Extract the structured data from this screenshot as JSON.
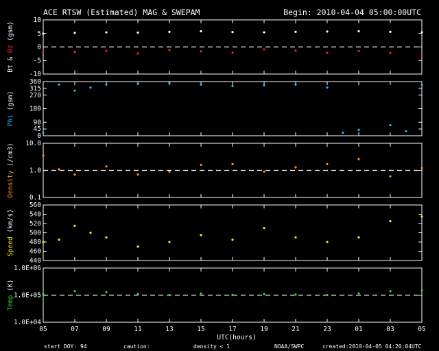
{
  "header": {
    "title": "ACE RTSW (Estimated) MAG & SWEPAM",
    "begin": "Begin: 2010-04-04 05:00:00UTC"
  },
  "footer": {
    "start_doy": "start DOY:  94",
    "caution": "caution:",
    "density_note": "density < 1",
    "agency": "NOAA/SWPC",
    "created": "created:2010-04-05 04:20:04UTC"
  },
  "colors": {
    "bt": "#ffffff",
    "bz": "#ff2020",
    "phi": "#30b8f0",
    "density": "#ff9020",
    "speed": "#f0f020",
    "temp": "#30e030",
    "density_note": "#ff9020"
  },
  "chart_data": {
    "type": "scatter",
    "x_unit": "UTC hours",
    "x_label": "UTC(hours)",
    "x_ticks": [
      "05",
      "07",
      "09",
      "11",
      "13",
      "15",
      "17",
      "19",
      "21",
      "23",
      "01",
      "03",
      "05"
    ],
    "panels": [
      {
        "key": "mag",
        "ylim": [
          -10,
          10
        ],
        "ytick_values": [
          -10,
          -5,
          0,
          5,
          10
        ],
        "ytick_labels": [
          "-10",
          "-5",
          "0",
          "5",
          "10"
        ],
        "ref_lines": [
          0
        ],
        "ylabel_parts": [
          {
            "text": "Bt",
            "color": "#ffffff"
          },
          {
            "text": " & ",
            "color": "#ffffff"
          },
          {
            "text": "Bz",
            "color": "#ff2020"
          },
          {
            "text": " (gsm)",
            "color": "#ffffff"
          }
        ],
        "series": [
          {
            "name": "Bt",
            "color": "#ffffff",
            "x": [
              0,
              2,
              4,
              6,
              8,
              10,
              12,
              14,
              16,
              18,
              20,
              22,
              24
            ],
            "y": [
              4.9,
              5.2,
              5.4,
              5.3,
              5.6,
              5.8,
              5.5,
              5.4,
              5.6,
              5.7,
              5.8,
              5.6,
              5.4
            ]
          },
          {
            "name": "Bz",
            "color": "#ff2020",
            "x": [
              0,
              2,
              4,
              6,
              8,
              10,
              12,
              14,
              16,
              18,
              20,
              22,
              24
            ],
            "y": [
              -1.5,
              -1.8,
              -1.4,
              -2.4,
              -1.2,
              -1.6,
              -2.1,
              -0.9,
              -1.4,
              -2.2,
              -1.5,
              -2.2,
              -3.3
            ]
          }
        ]
      },
      {
        "key": "phi",
        "ylim": [
          0,
          360
        ],
        "ytick_values": [
          0,
          45,
          90,
          180,
          270,
          315,
          360
        ],
        "ytick_labels": [
          "0",
          "45",
          "90",
          "180",
          "270",
          "315",
          "360"
        ],
        "ref_lines": [],
        "ylabel_parts": [
          {
            "text": "Phi",
            "color": "#30b8f0"
          },
          {
            "text": " (gsm)",
            "color": "#ffffff"
          }
        ],
        "series": [
          {
            "name": "Phi",
            "color": "#30b8f0",
            "x": [
              0,
              1,
              2,
              3,
              4,
              6,
              8,
              10,
              12,
              14,
              16,
              18,
              19,
              20,
              22,
              23,
              24
            ],
            "y": [
              20,
              340,
              300,
              320,
              340,
              345,
              350,
              340,
              330,
              335,
              340,
              320,
              20,
              40,
              70,
              30,
              340
            ]
          }
        ]
      },
      {
        "key": "density",
        "log": true,
        "ylim": [
          0.1,
          10
        ],
        "ytick_values": [
          0.1,
          1.0,
          10.0
        ],
        "ytick_labels": [
          "0.1",
          "1.0",
          "10.0"
        ],
        "ref_lines": [
          1
        ],
        "ylabel_parts": [
          {
            "text": "Density",
            "color": "#ff9020"
          },
          {
            "text": " (/cm3)",
            "color": "#ffffff"
          }
        ],
        "series": [
          {
            "name": "Density",
            "color": "#ff9020",
            "x": [
              0,
              1,
              2,
              4,
              6,
              8,
              10,
              12,
              14,
              16,
              18,
              20,
              22,
              24
            ],
            "y": [
              3.5,
              1.1,
              0.7,
              1.4,
              0.7,
              0.9,
              1.6,
              1.7,
              0.9,
              1.3,
              1.7,
              2.6,
              0.6,
              1.2
            ]
          }
        ]
      },
      {
        "key": "speed",
        "ylim": [
          440,
          560
        ],
        "ytick_values": [
          440,
          460,
          480,
          500,
          520,
          540,
          560
        ],
        "ytick_labels": [
          "440",
          "460",
          "480",
          "500",
          "520",
          "540",
          "560"
        ],
        "ref_lines": [],
        "ylabel_parts": [
          {
            "text": "Speed",
            "color": "#f0f020"
          },
          {
            "text": " (km/s)",
            "color": "#ffffff"
          }
        ],
        "series": [
          {
            "name": "Speed",
            "color": "#f0f020",
            "x": [
              0,
              1,
              2,
              3,
              4,
              6,
              8,
              10,
              12,
              14,
              16,
              18,
              20,
              22,
              24
            ],
            "y": [
              480,
              485,
              515,
              500,
              490,
              470,
              480,
              495,
              485,
              510,
              490,
              480,
              490,
              525,
              535
            ]
          }
        ]
      },
      {
        "key": "temp",
        "log": true,
        "ylim": [
          10000,
          1000000
        ],
        "ytick_values": [
          10000,
          100000,
          1000000
        ],
        "ytick_labels": [
          "1.0E+04",
          "1.0E+05",
          "1.0E+06"
        ],
        "ref_lines": [
          100000
        ],
        "ylabel_parts": [
          {
            "text": "Temp",
            "color": "#30e030"
          },
          {
            "text": " (K)",
            "color": "#ffffff"
          }
        ],
        "series": [
          {
            "name": "Temp",
            "color": "#30e030",
            "x": [
              0,
              2,
              4,
              6,
              8,
              10,
              12,
              14,
              16,
              18,
              20,
              22,
              24
            ],
            "y": [
              110000,
              140000,
              130000,
              110000,
              100000,
              115000,
              100000,
              110000,
              105000,
              100000,
              115000,
              140000,
              150000
            ]
          }
        ]
      }
    ]
  }
}
